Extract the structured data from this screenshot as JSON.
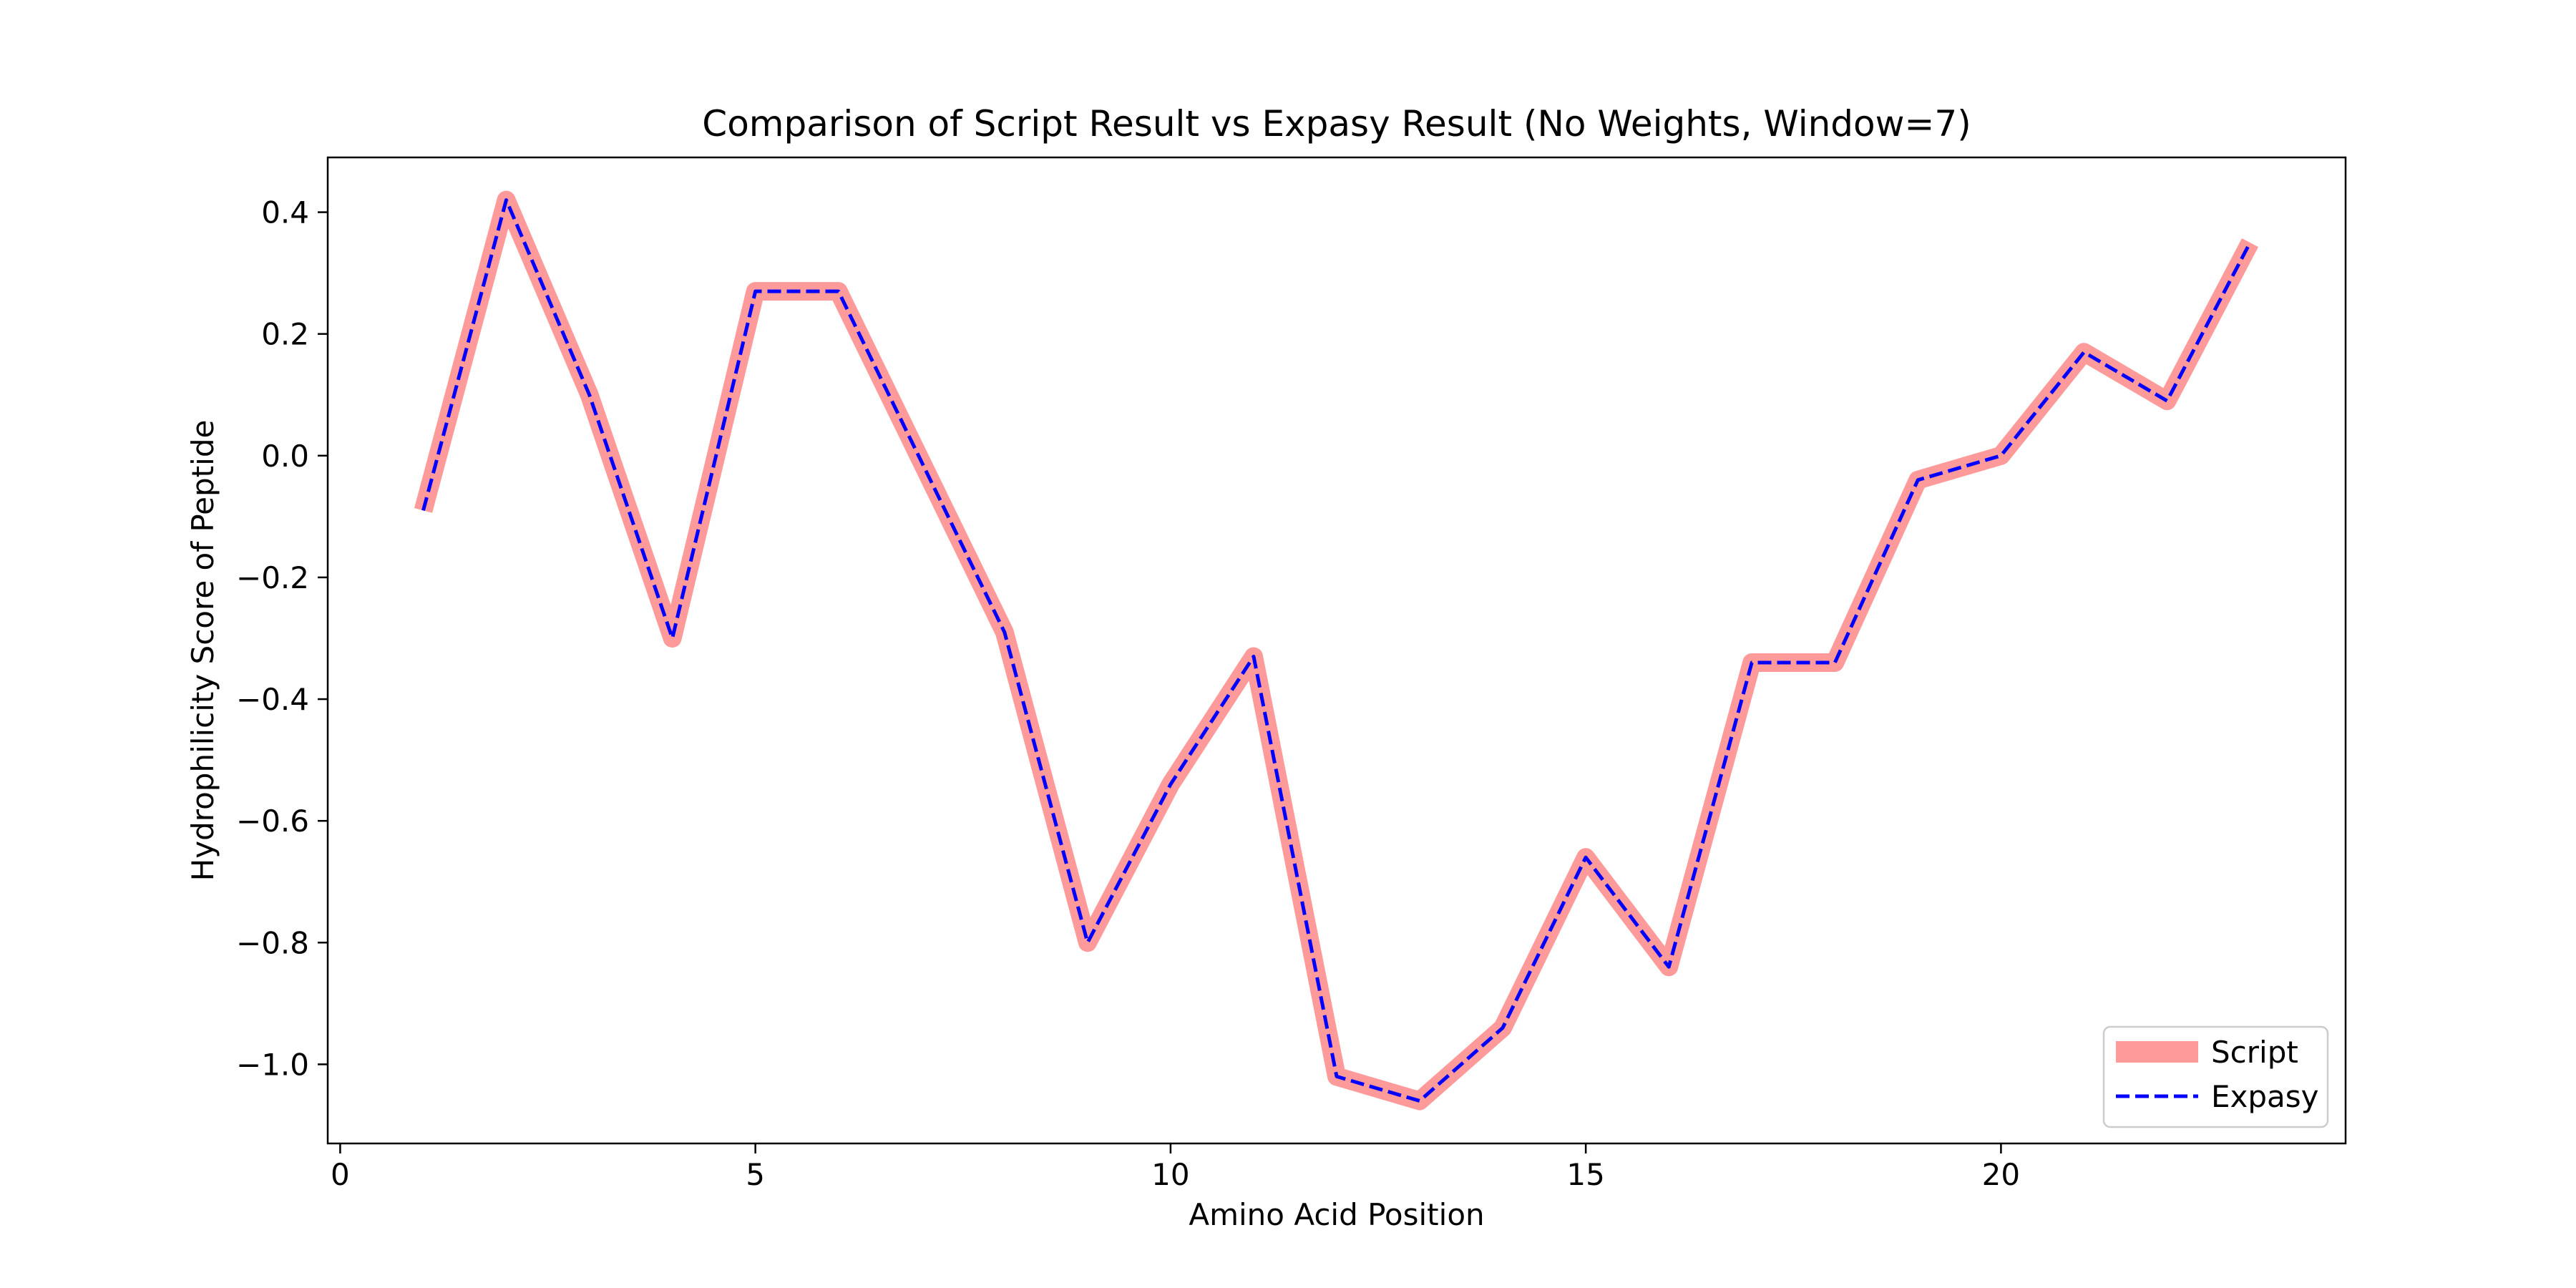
{
  "chart_data": {
    "type": "line",
    "title": "Comparison of Script Result vs Expasy Result (No Weights, Window=7)",
    "xlabel": "Amino Acid Position",
    "ylabel": "Hydrophilicity Score of Peptide",
    "xlim": [
      -0.15,
      24.15
    ],
    "ylim": [
      -1.13,
      0.49
    ],
    "xticks": [
      0,
      5,
      10,
      15,
      20
    ],
    "xtick_labels": [
      "0",
      "5",
      "10",
      "15",
      "20"
    ],
    "yticks": [
      0.4,
      0.2,
      0.0,
      -0.2,
      -0.4,
      -0.6,
      -0.8,
      -1.0
    ],
    "ytick_labels": [
      "0.4",
      "0.2",
      "0.0",
      "−0.2",
      "−0.4",
      "−0.6",
      "−0.8",
      "−1.0"
    ],
    "grid": false,
    "legend_position": "lower-right",
    "x": [
      1,
      2,
      3,
      4,
      5,
      6,
      7,
      8,
      9,
      10,
      11,
      12,
      13,
      14,
      15,
      16,
      17,
      18,
      19,
      20,
      21,
      22,
      23
    ],
    "series": [
      {
        "name": "Script",
        "color": "#ff9a9a",
        "style": "solid-thick",
        "values": [
          -0.09,
          0.42,
          0.1,
          -0.3,
          0.27,
          0.27,
          -0.01,
          -0.29,
          -0.8,
          -0.54,
          -0.33,
          -1.02,
          -1.06,
          -0.94,
          -0.66,
          -0.84,
          -0.34,
          -0.34,
          -0.04,
          0.0,
          0.17,
          0.09,
          0.35
        ]
      },
      {
        "name": "Expasy",
        "color": "#0000ff",
        "style": "dashed",
        "values": [
          -0.09,
          0.42,
          0.1,
          -0.3,
          0.27,
          0.27,
          -0.01,
          -0.29,
          -0.8,
          -0.54,
          -0.33,
          -1.02,
          -1.06,
          -0.94,
          -0.66,
          -0.84,
          -0.34,
          -0.34,
          -0.04,
          0.0,
          0.17,
          0.09,
          0.35
        ]
      }
    ]
  }
}
